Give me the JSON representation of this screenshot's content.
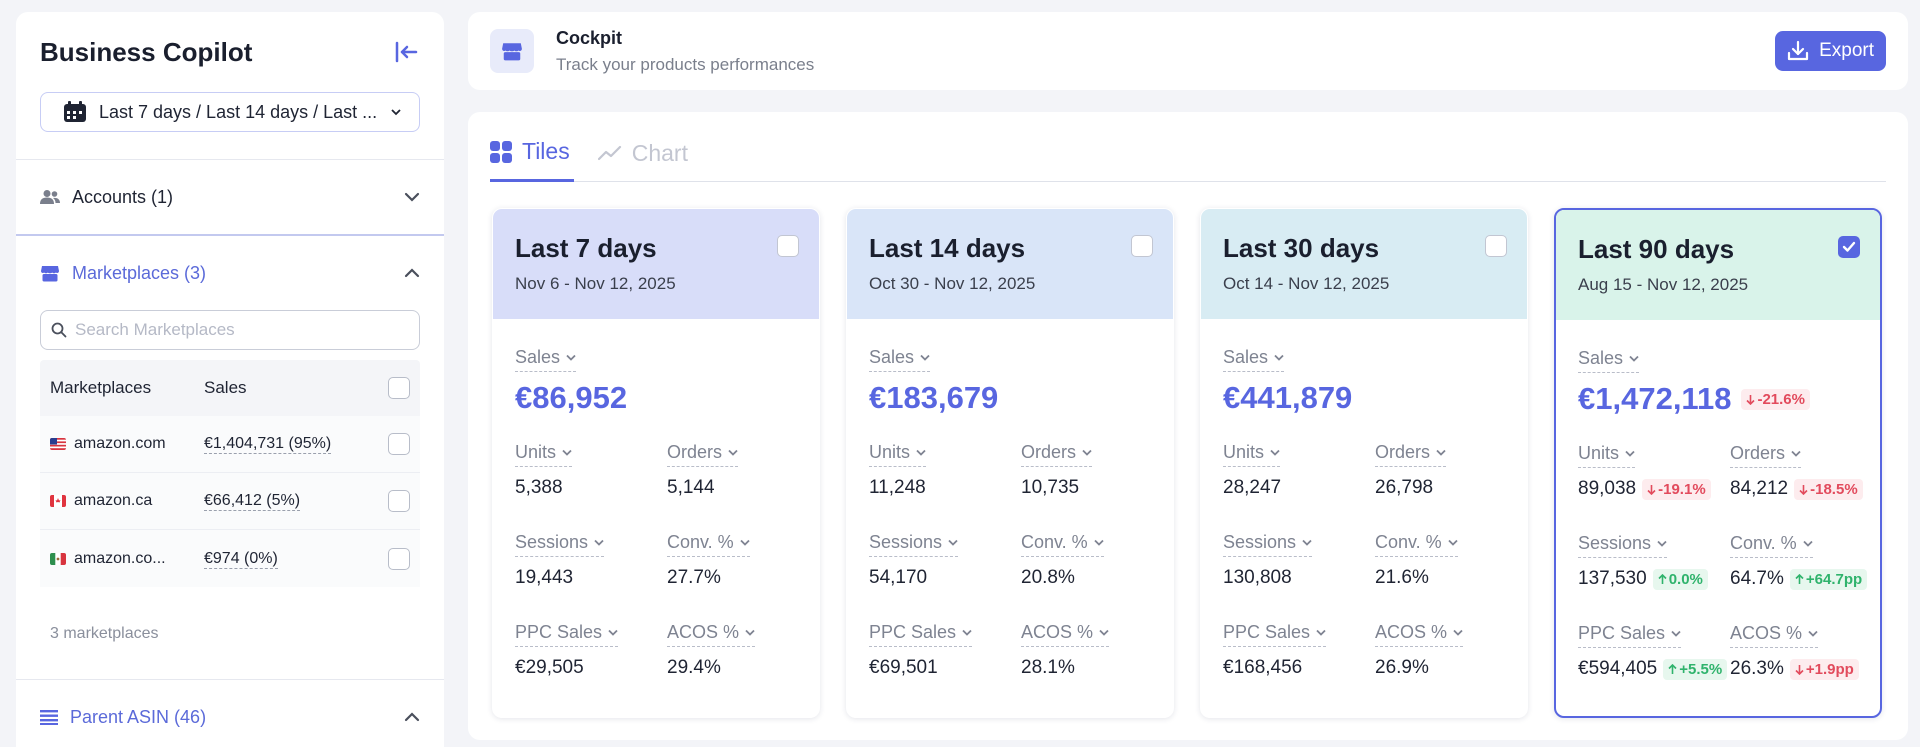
{
  "sidebar": {
    "title": "Business Copilot",
    "date_selector": "Last 7 days / Last 14 days / Last ...",
    "accounts": {
      "label": "Accounts (1)"
    },
    "marketplaces": {
      "label": "Marketplaces (3)",
      "search_placeholder": "Search Marketplaces",
      "columns": [
        "Marketplaces",
        "Sales"
      ],
      "rows": [
        {
          "name": "amazon.com",
          "sales": "€1,404,731 (95%)",
          "flag": "us"
        },
        {
          "name": "amazon.ca",
          "sales": "€66,412 (5%)",
          "flag": "ca"
        },
        {
          "name": "amazon.co...",
          "sales": "€974 (0%)",
          "flag": "mx"
        }
      ],
      "count": "3 marketplaces"
    },
    "parent_asin": {
      "label": "Parent ASIN (46)"
    }
  },
  "header": {
    "title": "Cockpit",
    "subtitle": "Track your products performances",
    "export_label": "Export"
  },
  "tabs": [
    {
      "label": "Tiles",
      "active": true
    },
    {
      "label": "Chart",
      "active": false
    }
  ],
  "cards": [
    {
      "title": "Last 7 days",
      "range": "Nov 6 - Nov 12, 2025",
      "color": "#d8ddf9",
      "selected": false,
      "sales_label": "Sales",
      "sales": "€86,952",
      "sales_delta": null,
      "metrics": [
        {
          "label": "Units",
          "value": "5,388"
        },
        {
          "label": "Orders",
          "value": "5,144"
        },
        {
          "label": "Sessions",
          "value": "19,443"
        },
        {
          "label": "Conv. %",
          "value": "27.7%"
        },
        {
          "label": "PPC Sales",
          "value": "€29,505"
        },
        {
          "label": "ACOS %",
          "value": "29.4%"
        }
      ]
    },
    {
      "title": "Last 14 days",
      "range": "Oct 30 - Nov 12, 2025",
      "color": "#d9e5f8",
      "selected": false,
      "sales_label": "Sales",
      "sales": "€183,679",
      "sales_delta": null,
      "metrics": [
        {
          "label": "Units",
          "value": "11,248"
        },
        {
          "label": "Orders",
          "value": "10,735"
        },
        {
          "label": "Sessions",
          "value": "54,170"
        },
        {
          "label": "Conv. %",
          "value": "20.8%"
        },
        {
          "label": "PPC Sales",
          "value": "€69,501"
        },
        {
          "label": "ACOS %",
          "value": "28.1%"
        }
      ]
    },
    {
      "title": "Last 30 days",
      "range": "Oct 14 - Nov 12, 2025",
      "color": "#d8ecf3",
      "selected": false,
      "sales_label": "Sales",
      "sales": "€441,879",
      "sales_delta": null,
      "metrics": [
        {
          "label": "Units",
          "value": "28,247"
        },
        {
          "label": "Orders",
          "value": "26,798"
        },
        {
          "label": "Sessions",
          "value": "130,808"
        },
        {
          "label": "Conv. %",
          "value": "21.6%"
        },
        {
          "label": "PPC Sales",
          "value": "€168,456"
        },
        {
          "label": "ACOS %",
          "value": "26.9%"
        }
      ]
    },
    {
      "title": "Last 90 days",
      "range": "Aug 15 - Nov 12, 2025",
      "color": "#d9f3ea",
      "selected": true,
      "sales_label": "Sales",
      "sales": "€1,472,118",
      "sales_delta": {
        "text": "-21.6%",
        "dir": "neg"
      },
      "metrics": [
        {
          "label": "Units",
          "value": "89,038",
          "delta": {
            "text": "-19.1%",
            "dir": "neg"
          }
        },
        {
          "label": "Orders",
          "value": "84,212",
          "delta": {
            "text": "-18.5%",
            "dir": "neg"
          }
        },
        {
          "label": "Sessions",
          "value": "137,530",
          "delta": {
            "text": "0.0%",
            "dir": "pos"
          }
        },
        {
          "label": "Conv. %",
          "value": "64.7%",
          "delta": {
            "text": "+64.7pp",
            "dir": "pos"
          }
        },
        {
          "label": "PPC Sales",
          "value": "€594,405",
          "delta": {
            "text": "+5.5%",
            "dir": "pos"
          }
        },
        {
          "label": "ACOS %",
          "value": "26.3%",
          "delta": {
            "text": "+1.9pp",
            "dir": "neg"
          }
        }
      ]
    }
  ]
}
